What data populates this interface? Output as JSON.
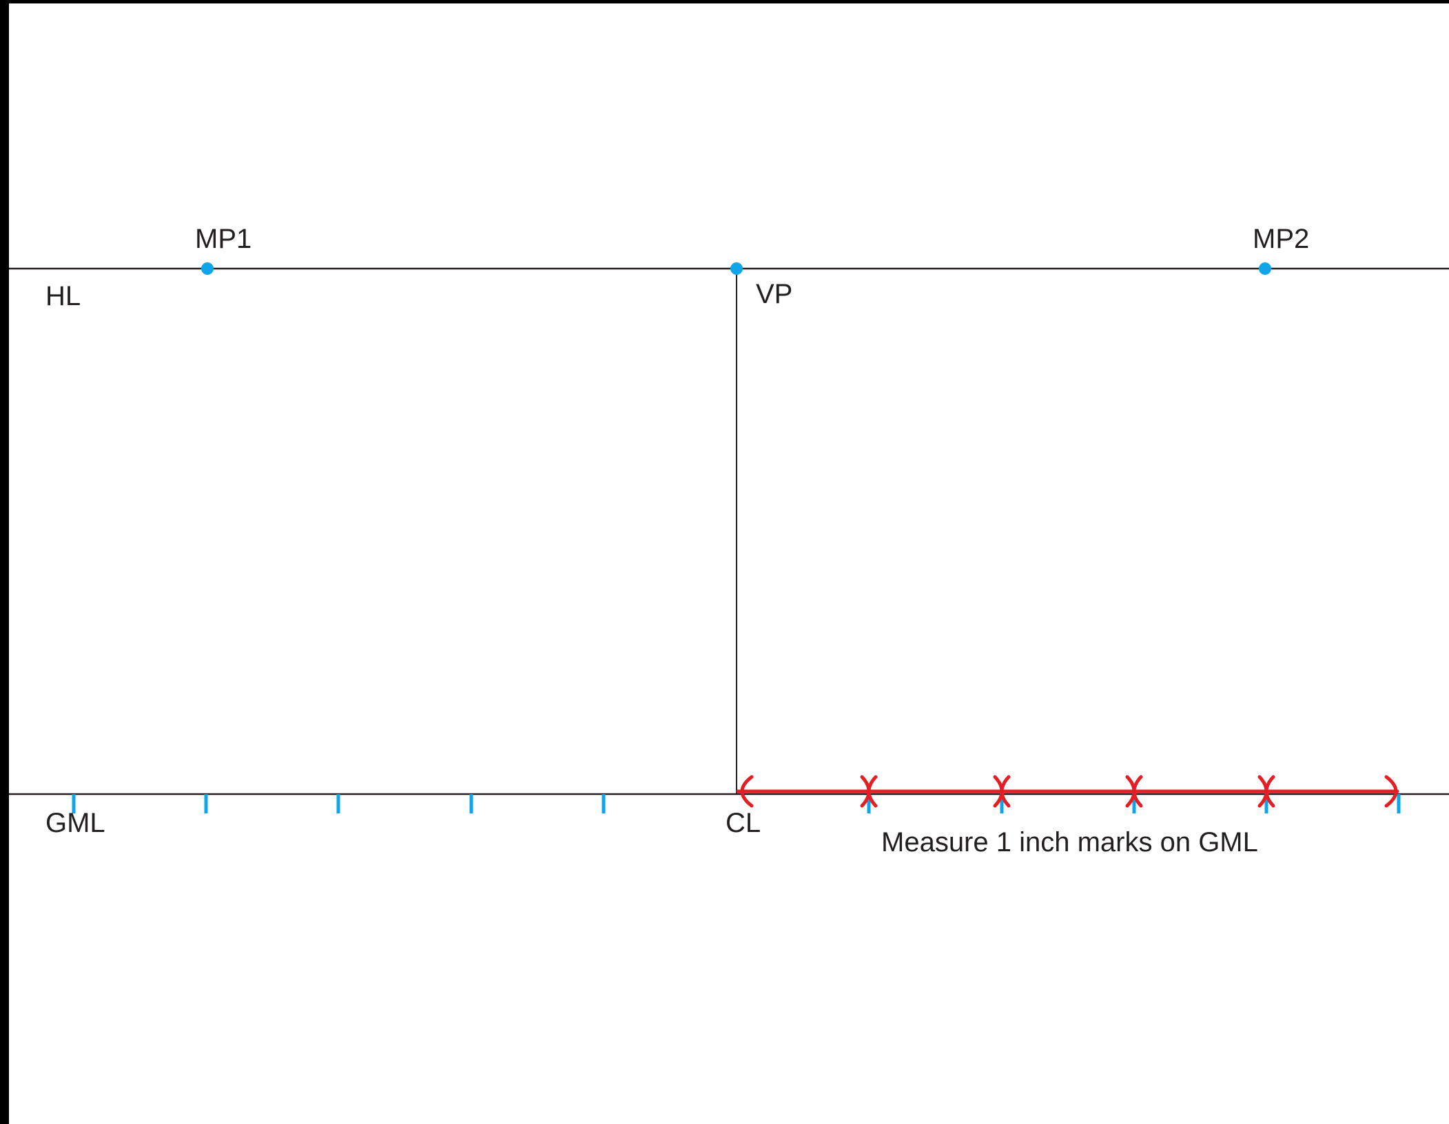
{
  "labels": {
    "horizon_line": "HL",
    "measuring_point_1": "MP1",
    "vanishing_point": "VP",
    "measuring_point_2": "MP2",
    "ground_measuring_line": "GML",
    "center_line": "CL",
    "instruction": "Measure 1 inch marks on GML"
  },
  "colors": {
    "background": "#ffffff",
    "border": "#000000",
    "line": "#231f20",
    "point": "#0ea5e9",
    "tick": "#0ea5e9",
    "measure": "#e31e24"
  },
  "gml": {
    "left_tick_count": 5,
    "right_tick_count": 5,
    "measured_interval_count": 5,
    "interval_inches": 1
  }
}
